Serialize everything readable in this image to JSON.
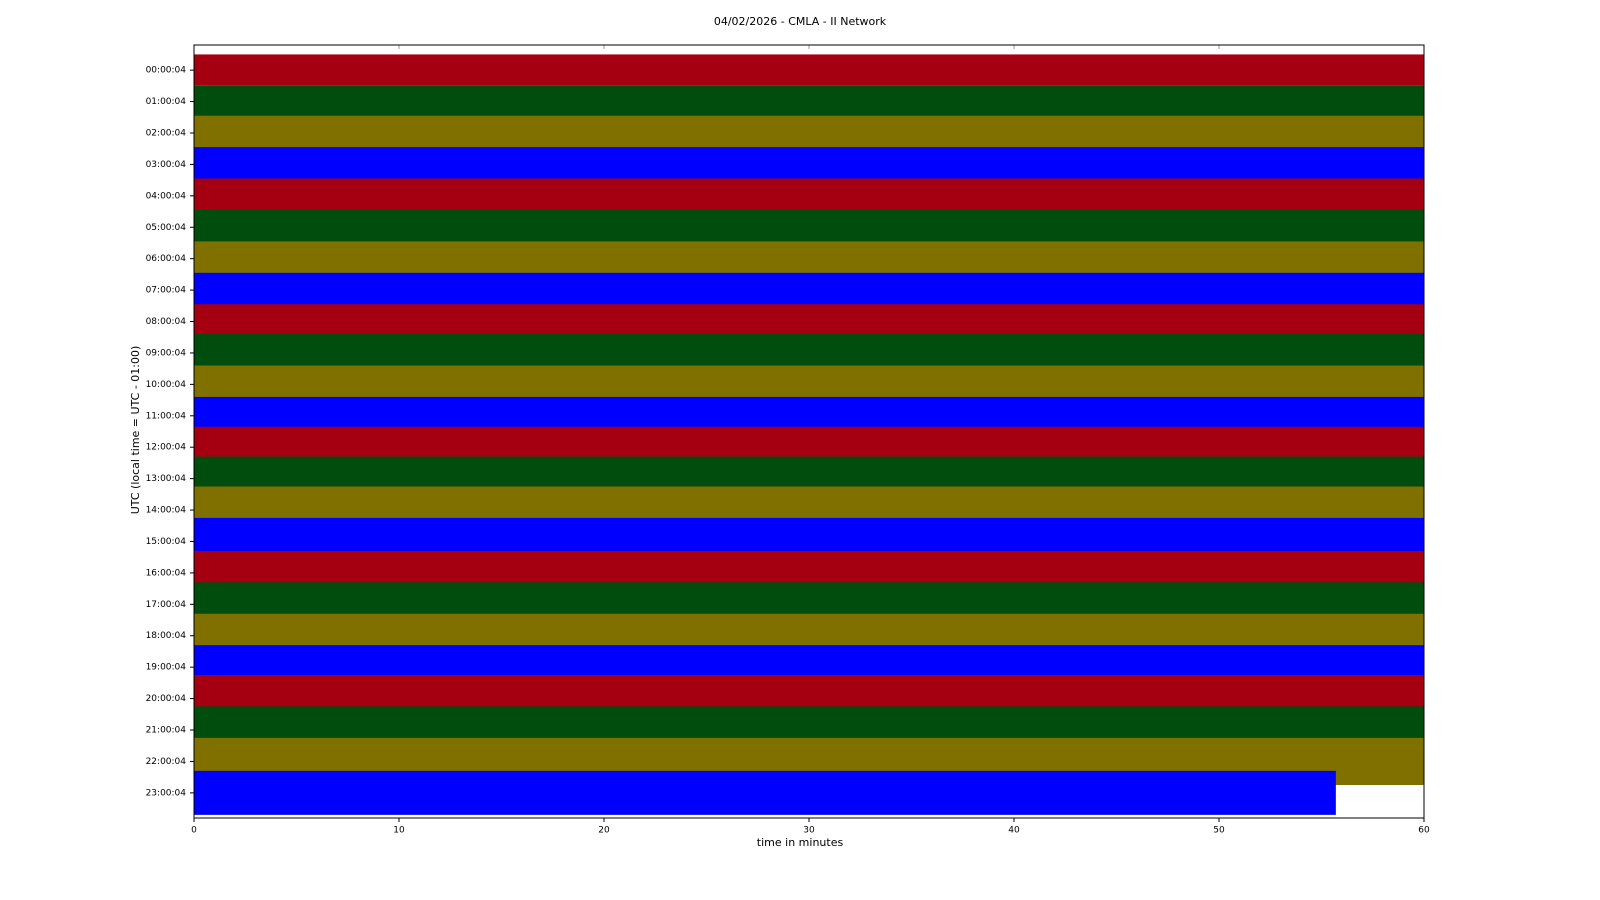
{
  "chart_data": {
    "type": "helicorder",
    "title": "04/02/2026 - CMLA - II Network",
    "x_label": "time in minutes",
    "y_label": "UTC (local time = UTC - 01:00)",
    "xlim": [
      0,
      60
    ],
    "xticks": [
      0,
      10,
      20,
      30,
      40,
      50,
      60
    ],
    "series": [
      {
        "name": "00:00:04",
        "color": "#a50012",
        "x": [
          0,
          60
        ],
        "amplitude": 0.5
      },
      {
        "name": "01:00:04",
        "color": "#004d0d",
        "x": [
          0,
          60
        ],
        "amplitude": 0.5
      },
      {
        "name": "02:00:04",
        "color": "#7f7000",
        "x": [
          0,
          60
        ],
        "amplitude": 0.55
      },
      {
        "name": "03:00:04",
        "color": "#0000ff",
        "x": [
          0,
          60
        ],
        "amplitude": 0.55
      },
      {
        "name": "04:00:04",
        "color": "#a50012",
        "x": [
          0,
          60
        ],
        "amplitude": 0.55
      },
      {
        "name": "05:00:04",
        "color": "#004d0d",
        "x": [
          0,
          60
        ],
        "amplitude": 0.55
      },
      {
        "name": "06:00:04",
        "color": "#7f7000",
        "x": [
          0,
          60
        ],
        "amplitude": 0.55
      },
      {
        "name": "07:00:04",
        "color": "#0000ff",
        "x": [
          0,
          60
        ],
        "amplitude": 0.55
      },
      {
        "name": "08:00:04",
        "color": "#a50012",
        "x": [
          0,
          60
        ],
        "amplitude": 0.55
      },
      {
        "name": "09:00:04",
        "color": "#004d0d",
        "x": [
          0,
          60
        ],
        "amplitude": 0.6
      },
      {
        "name": "10:00:04",
        "color": "#7f7000",
        "x": [
          0,
          60
        ],
        "amplitude": 0.6
      },
      {
        "name": "11:00:04",
        "color": "#0000ff",
        "x": [
          0,
          60
        ],
        "amplitude": 0.6
      },
      {
        "name": "12:00:04",
        "color": "#a50012",
        "x": [
          0,
          60
        ],
        "amplitude": 0.65
      },
      {
        "name": "13:00:04",
        "color": "#004d0d",
        "x": [
          0,
          60
        ],
        "amplitude": 0.7
      },
      {
        "name": "14:00:04",
        "color": "#7f7000",
        "x": [
          0,
          60
        ],
        "amplitude": 0.75
      },
      {
        "name": "15:00:04",
        "color": "#0000ff",
        "x": [
          0,
          60
        ],
        "amplitude": 0.75
      },
      {
        "name": "16:00:04",
        "color": "#a50012",
        "x": [
          0,
          60
        ],
        "amplitude": 0.7
      },
      {
        "name": "17:00:04",
        "color": "#004d0d",
        "x": [
          0,
          60
        ],
        "amplitude": 0.7
      },
      {
        "name": "18:00:04",
        "color": "#7f7000",
        "x": [
          0,
          60
        ],
        "amplitude": 0.7
      },
      {
        "name": "19:00:04",
        "color": "#0000ff",
        "x": [
          0,
          60
        ],
        "amplitude": 0.7
      },
      {
        "name": "20:00:04",
        "color": "#a50012",
        "x": [
          0,
          60
        ],
        "amplitude": 0.75
      },
      {
        "name": "21:00:04",
        "color": "#004d0d",
        "x": [
          0,
          60
        ],
        "amplitude": 0.75
      },
      {
        "name": "22:00:04",
        "color": "#7f7000",
        "x": [
          0,
          60
        ],
        "amplitude": 0.75
      },
      {
        "name": "23:00:04",
        "color": "#0000ff",
        "x": [
          0,
          55.7
        ],
        "amplitude": 0.7
      }
    ]
  }
}
